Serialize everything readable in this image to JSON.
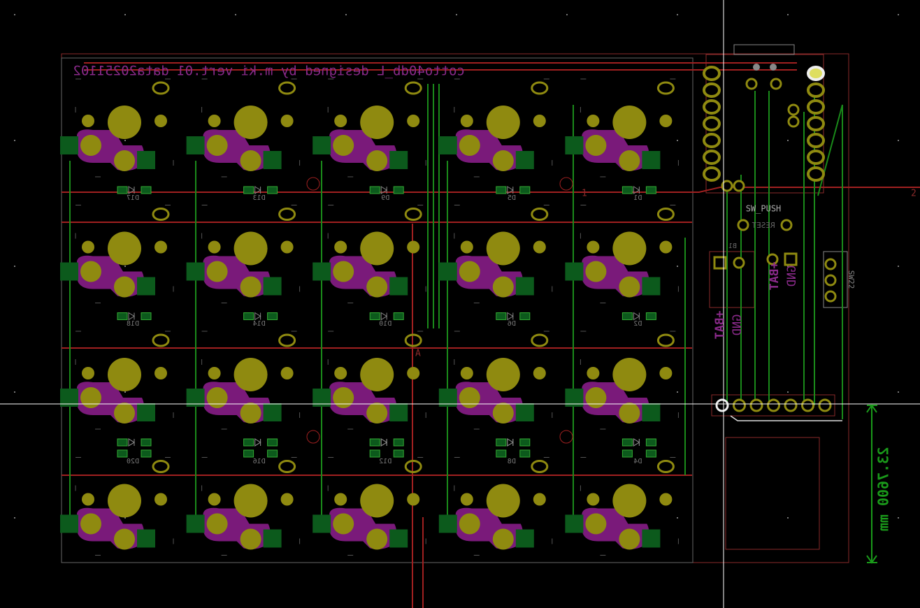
{
  "board_title": "cotto40db_L designed by m.ki vert.01 data20251102",
  "diode_labels": [
    [
      "D17",
      "D13",
      "D9",
      "D5",
      "D1"
    ],
    [
      "D18",
      "D14",
      "D10",
      "D6",
      "D2"
    ],
    [
      "D20",
      "D16",
      "D12",
      "D8",
      "D4"
    ]
  ],
  "components": {
    "reset_switch": "SW_PUSH",
    "reset_ref": "RESET",
    "power_switch": "SW22",
    "battery_plus": [
      "+BAT",
      "+BAT"
    ],
    "battery_gnd": [
      "GND",
      "GND"
    ],
    "battery_ref": "B1"
  },
  "dimension": "23.7600 mm",
  "markers": [
    "1",
    "2",
    "A"
  ]
}
